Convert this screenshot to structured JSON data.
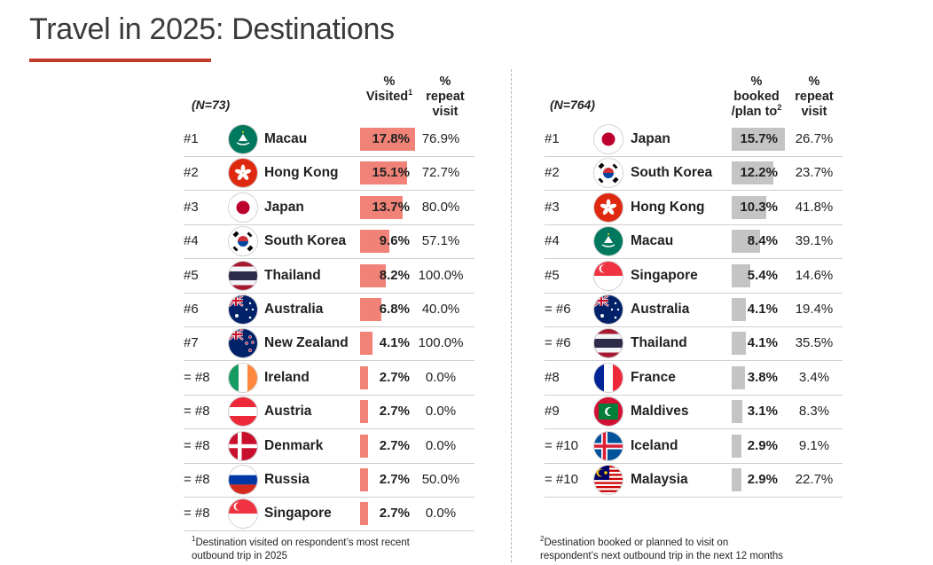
{
  "title": "Travel in 2025: Destinations",
  "left": {
    "n": "(N=73)",
    "head_pct_line1": "%",
    "head_pct_line2": "Visited",
    "head_pct_sup": "1",
    "head_rep_line1": "%",
    "head_rep_line2": "repeat",
    "head_rep_line3": "visit",
    "bar_color": "#f08277",
    "rows": [
      {
        "rank": "#1",
        "country": "Macau",
        "flag": "macau",
        "pct": "17.8%",
        "value": 17.8,
        "repeat": "76.9%"
      },
      {
        "rank": "#2",
        "country": "Hong Kong",
        "flag": "hongkong",
        "pct": "15.1%",
        "value": 15.1,
        "repeat": "72.7%"
      },
      {
        "rank": "#3",
        "country": "Japan",
        "flag": "japan",
        "pct": "13.7%",
        "value": 13.7,
        "repeat": "80.0%"
      },
      {
        "rank": "#4",
        "country": "South Korea",
        "flag": "korea",
        "pct": "9.6%",
        "value": 9.6,
        "repeat": "57.1%"
      },
      {
        "rank": "#5",
        "country": "Thailand",
        "flag": "thailand",
        "pct": "8.2%",
        "value": 8.2,
        "repeat": "100.0%"
      },
      {
        "rank": "#6",
        "country": "Australia",
        "flag": "australia",
        "pct": "6.8%",
        "value": 6.8,
        "repeat": "40.0%"
      },
      {
        "rank": "#7",
        "country": "New Zealand",
        "flag": "newzealand",
        "pct": "4.1%",
        "value": 4.1,
        "repeat": "100.0%"
      },
      {
        "rank": "= #8",
        "country": "Ireland",
        "flag": "ireland",
        "pct": "2.7%",
        "value": 2.7,
        "repeat": "0.0%"
      },
      {
        "rank": "= #8",
        "country": "Austria",
        "flag": "austria",
        "pct": "2.7%",
        "value": 2.7,
        "repeat": "0.0%"
      },
      {
        "rank": "= #8",
        "country": "Denmark",
        "flag": "denmark",
        "pct": "2.7%",
        "value": 2.7,
        "repeat": "0.0%"
      },
      {
        "rank": "= #8",
        "country": "Russia",
        "flag": "russia",
        "pct": "2.7%",
        "value": 2.7,
        "repeat": "50.0%"
      },
      {
        "rank": "= #8",
        "country": "Singapore",
        "flag": "singapore",
        "pct": "2.7%",
        "value": 2.7,
        "repeat": "0.0%"
      }
    ],
    "footnote_sup": "1",
    "footnote_line1": "Destination visited on respondent’s most recent",
    "footnote_line2": "outbound trip in 2025"
  },
  "right": {
    "n": "(N=764)",
    "head_pct_line1": "%",
    "head_pct_line2": "booked",
    "head_pct_line3": "/plan to",
    "head_pct_sup": "2",
    "head_rep_line1": "%",
    "head_rep_line2": "repeat",
    "head_rep_line3": "visit",
    "bar_color": "#c4c4c4",
    "rows": [
      {
        "rank": "#1",
        "country": "Japan",
        "flag": "japan",
        "pct": "15.7%",
        "value": 15.7,
        "repeat": "26.7%"
      },
      {
        "rank": "#2",
        "country": "South Korea",
        "flag": "korea",
        "pct": "12.2%",
        "value": 12.2,
        "repeat": "23.7%"
      },
      {
        "rank": "#3",
        "country": "Hong Kong",
        "flag": "hongkong",
        "pct": "10.3%",
        "value": 10.3,
        "repeat": "41.8%"
      },
      {
        "rank": "#4",
        "country": "Macau",
        "flag": "macau",
        "pct": "8.4%",
        "value": 8.4,
        "repeat": "39.1%"
      },
      {
        "rank": "#5",
        "country": "Singapore",
        "flag": "singapore",
        "pct": "5.4%",
        "value": 5.4,
        "repeat": "14.6%"
      },
      {
        "rank": "= #6",
        "country": "Australia",
        "flag": "australia",
        "pct": "4.1%",
        "value": 4.1,
        "repeat": "19.4%"
      },
      {
        "rank": "= #6",
        "country": "Thailand",
        "flag": "thailand",
        "pct": "4.1%",
        "value": 4.1,
        "repeat": "35.5%"
      },
      {
        "rank": "#8",
        "country": "France",
        "flag": "france",
        "pct": "3.8%",
        "value": 3.8,
        "repeat": "3.4%"
      },
      {
        "rank": "#9",
        "country": "Maldives",
        "flag": "maldives",
        "pct": "3.1%",
        "value": 3.1,
        "repeat": "8.3%"
      },
      {
        "rank": "= #10",
        "country": "Iceland",
        "flag": "iceland",
        "pct": "2.9%",
        "value": 2.9,
        "repeat": "9.1%"
      },
      {
        "rank": "= #10",
        "country": "Malaysia",
        "flag": "malaysia",
        "pct": "2.9%",
        "value": 2.9,
        "repeat": "22.7%"
      }
    ],
    "footnote_sup": "2",
    "footnote_line1": "Destination booked or planned to visit on",
    "footnote_line2": "respondent’s next outbound trip in the next 12 months"
  }
}
